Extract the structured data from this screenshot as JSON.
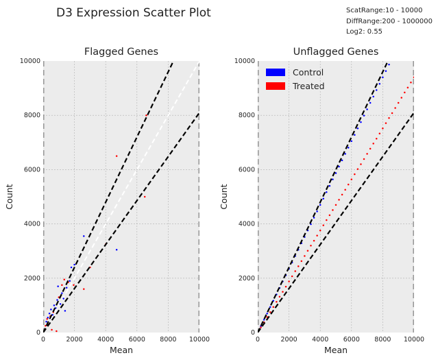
{
  "title": "D3 Expression Scatter Plot",
  "info": {
    "lines": [
      "ScatRange:10 - 10000",
      "DiffRange:200 - 1000000",
      "Log2: 0.55"
    ]
  },
  "colors": {
    "control": "#0000ff",
    "treated": "#ff0000",
    "axes_bg": "#ececec",
    "grid": "#b0b0b0",
    "ref_line": "#000000",
    "identity_line": "#ffffff",
    "range_line": "#888888"
  },
  "chart_data": [
    {
      "type": "scatter",
      "title": "Flagged Genes",
      "xlabel": "Mean",
      "ylabel": "Count",
      "xlim": [
        0,
        10000
      ],
      "ylim": [
        0,
        10000
      ],
      "xticks": [
        "0",
        "2000",
        "4000",
        "6000",
        "8000",
        "10000"
      ],
      "yticks": [
        "0",
        "2000",
        "4000",
        "6000",
        "8000",
        "10000"
      ],
      "grid": true,
      "identity_line": true,
      "fold_lines": [
        1.2,
        0.81
      ],
      "vertical_range_lines": [
        10,
        10000
      ],
      "series": [
        {
          "name": "Control",
          "color": "#0000ff",
          "points": [
            [
              200,
              400
            ],
            [
              300,
              550
            ],
            [
              400,
              700
            ],
            [
              500,
              850
            ],
            [
              600,
              650
            ],
            [
              700,
              1000
            ],
            [
              800,
              900
            ],
            [
              900,
              1200
            ],
            [
              950,
              1700
            ],
            [
              1100,
              1050
            ],
            [
              1200,
              1450
            ],
            [
              1300,
              1250
            ],
            [
              1400,
              800
            ],
            [
              1500,
              1650
            ],
            [
              1700,
              1900
            ],
            [
              1800,
              2400
            ],
            [
              2000,
              2500
            ],
            [
              2600,
              3550
            ],
            [
              4700,
              3050
            ]
          ]
        },
        {
          "name": "Treated",
          "color": "#ff0000",
          "points": [
            [
              150,
              250
            ],
            [
              250,
              500
            ],
            [
              350,
              300
            ],
            [
              450,
              600
            ],
            [
              550,
              100
            ],
            [
              650,
              750
            ],
            [
              850,
              50
            ],
            [
              1000,
              1300
            ],
            [
              1200,
              1750
            ],
            [
              1350,
              1950
            ],
            [
              1600,
              1850
            ],
            [
              1950,
              1750
            ],
            [
              2600,
              1600
            ],
            [
              3000,
              2400
            ],
            [
              4000,
              3250
            ],
            [
              4700,
              6500
            ],
            [
              6500,
              5000
            ],
            [
              6600,
              8000
            ]
          ]
        }
      ]
    },
    {
      "type": "scatter",
      "title": "Unflagged Genes",
      "xlabel": "Mean",
      "ylabel": "Count",
      "xlim": [
        0,
        10000
      ],
      "ylim": [
        0,
        10000
      ],
      "xticks": [
        "0",
        "2000",
        "4000",
        "6000",
        "8000",
        "10000"
      ],
      "yticks": [
        "0",
        "2000",
        "4000",
        "6000",
        "8000",
        "10000"
      ],
      "grid": true,
      "identity_line": false,
      "fold_lines": [
        1.2,
        0.81
      ],
      "vertical_range_lines": [
        10,
        10000
      ],
      "legend": {
        "position": "top-left",
        "entries": [
          "Control",
          "Treated"
        ]
      },
      "series": [
        {
          "name": "Control",
          "color": "#0000ff",
          "points": [
            [
              200,
              230
            ],
            [
              400,
              470
            ],
            [
              600,
              700
            ],
            [
              800,
              940
            ],
            [
              1000,
              1170
            ],
            [
              1200,
              1400
            ],
            [
              1400,
              1640
            ],
            [
              1600,
              1880
            ],
            [
              1800,
              2110
            ],
            [
              2000,
              2350
            ],
            [
              2200,
              2580
            ],
            [
              2400,
              2820
            ],
            [
              2600,
              3050
            ],
            [
              2800,
              3290
            ],
            [
              3000,
              3520
            ],
            [
              3200,
              3760
            ],
            [
              3400,
              3990
            ],
            [
              3600,
              4230
            ],
            [
              3800,
              4460
            ],
            [
              4000,
              4700
            ],
            [
              4200,
              4930
            ],
            [
              4400,
              5170
            ],
            [
              4600,
              5400
            ],
            [
              4800,
              5640
            ],
            [
              5000,
              5870
            ],
            [
              5200,
              6110
            ],
            [
              5400,
              6340
            ],
            [
              5600,
              6580
            ],
            [
              5800,
              6810
            ],
            [
              6000,
              7050
            ],
            [
              6200,
              7280
            ],
            [
              6400,
              7520
            ],
            [
              6600,
              7750
            ],
            [
              6800,
              7990
            ],
            [
              7000,
              8220
            ],
            [
              7200,
              8460
            ],
            [
              7400,
              8690
            ],
            [
              7600,
              8930
            ],
            [
              7800,
              9160
            ],
            [
              8000,
              9400
            ],
            [
              8200,
              9630
            ],
            [
              8400,
              9870
            ]
          ]
        },
        {
          "name": "Treated",
          "color": "#ff0000",
          "points": [
            [
              200,
              190
            ],
            [
              400,
              380
            ],
            [
              600,
              570
            ],
            [
              800,
              750
            ],
            [
              1000,
              940
            ],
            [
              1200,
              1130
            ],
            [
              1400,
              1320
            ],
            [
              1600,
              1500
            ],
            [
              1800,
              1690
            ],
            [
              2000,
              1880
            ],
            [
              2200,
              2070
            ],
            [
              2400,
              2260
            ],
            [
              2600,
              2440
            ],
            [
              2800,
              2630
            ],
            [
              3000,
              2820
            ],
            [
              3200,
              3010
            ],
            [
              3400,
              3200
            ],
            [
              3600,
              3380
            ],
            [
              3800,
              3570
            ],
            [
              4000,
              3760
            ],
            [
              4200,
              3950
            ],
            [
              4400,
              4140
            ],
            [
              4600,
              4320
            ],
            [
              4800,
              4510
            ],
            [
              5000,
              4700
            ],
            [
              5200,
              4890
            ],
            [
              5400,
              5080
            ],
            [
              5600,
              5260
            ],
            [
              5800,
              5450
            ],
            [
              6000,
              5640
            ],
            [
              6200,
              5830
            ],
            [
              6400,
              6020
            ],
            [
              6600,
              6200
            ],
            [
              6800,
              6390
            ],
            [
              7000,
              6580
            ],
            [
              7200,
              6770
            ],
            [
              7400,
              6960
            ],
            [
              7600,
              7140
            ],
            [
              7800,
              7330
            ],
            [
              8000,
              7520
            ],
            [
              8200,
              7710
            ],
            [
              8400,
              7900
            ],
            [
              8600,
              8080
            ],
            [
              8800,
              8270
            ],
            [
              9000,
              8460
            ],
            [
              9200,
              8650
            ],
            [
              9400,
              8840
            ],
            [
              9600,
              9020
            ],
            [
              9800,
              9210
            ],
            [
              10000,
              9400
            ]
          ]
        }
      ]
    }
  ]
}
